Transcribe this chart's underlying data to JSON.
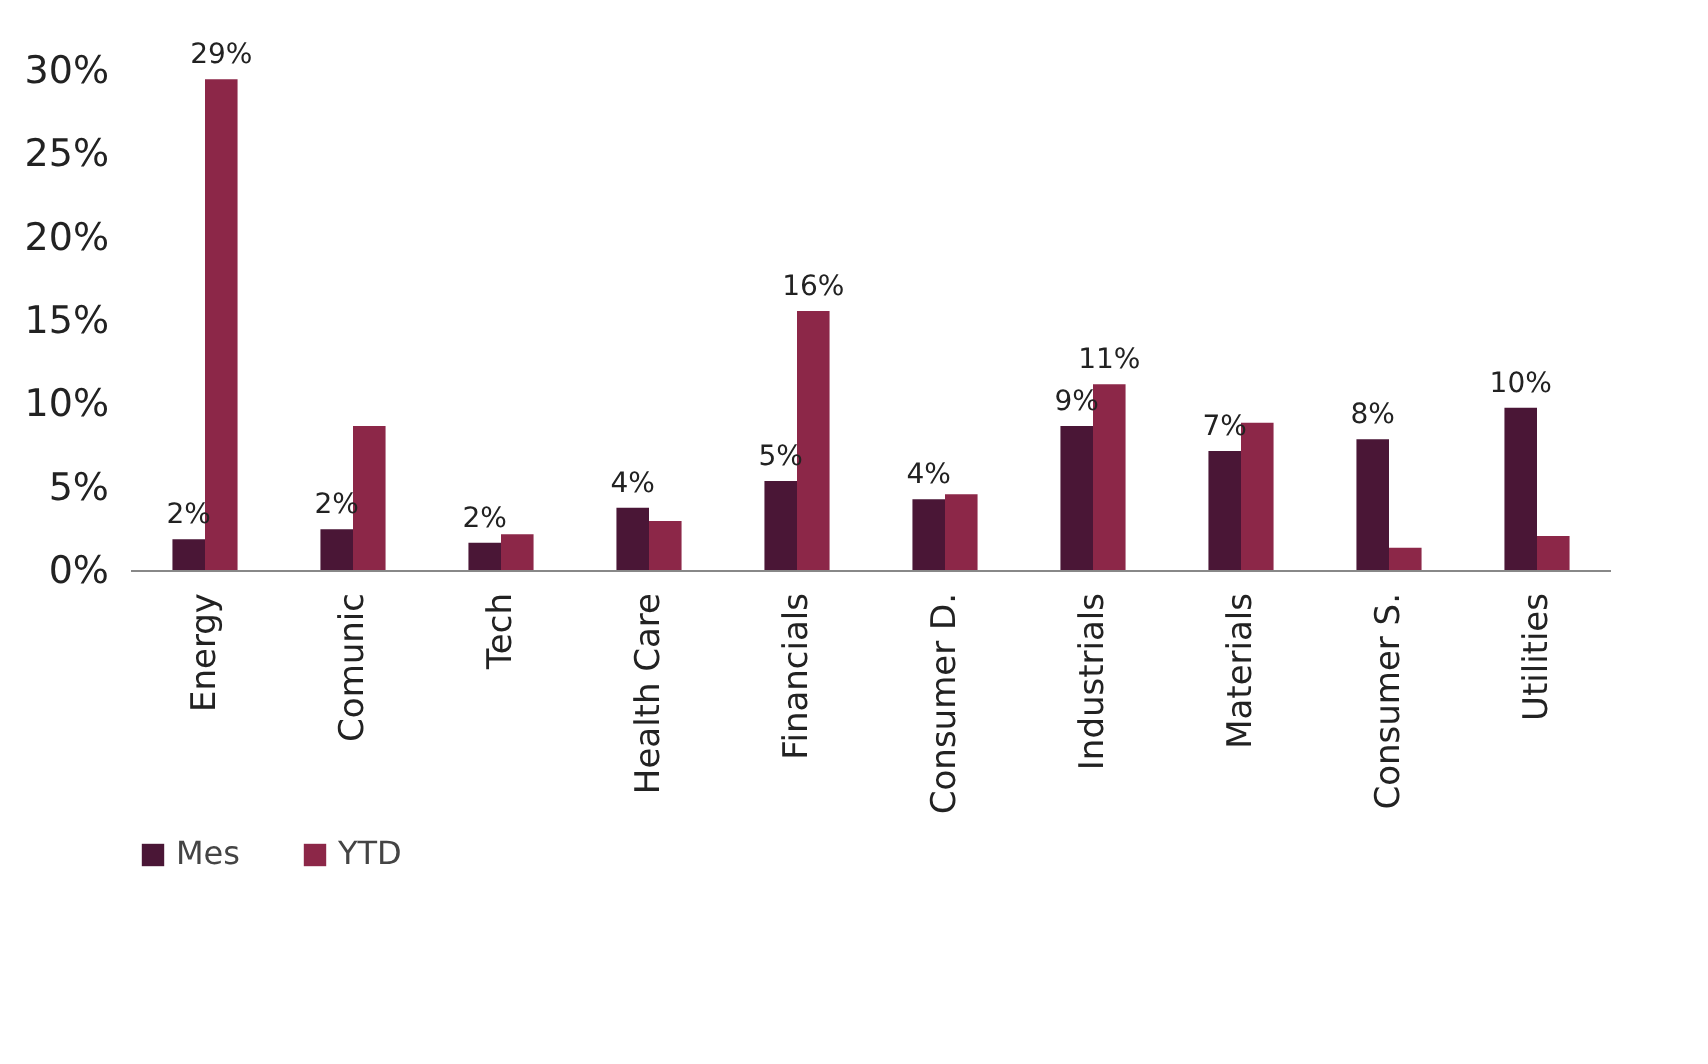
{
  "chart_data": {
    "type": "bar",
    "categories": [
      "Energy",
      "Comunic",
      "Tech",
      "Health Care",
      "Financials",
      "Consumer D.",
      "Industrials",
      "Materials",
      "Consumer S.",
      "Utilities"
    ],
    "series": [
      {
        "name": "Mes",
        "color": "#4a1636",
        "values": [
          1.9,
          2.5,
          1.7,
          3.8,
          5.4,
          4.3,
          8.7,
          7.2,
          7.9,
          9.8
        ],
        "value_labels": [
          "2%",
          "2%",
          "2%",
          "4%",
          "5%",
          "4%",
          "9%",
          "7%",
          "8%",
          "10%"
        ]
      },
      {
        "name": "YTD",
        "color": "#8c2748",
        "values": [
          29.5,
          8.7,
          2.2,
          3.0,
          15.6,
          4.6,
          11.2,
          8.9,
          1.4,
          2.1
        ],
        "value_labels": [
          "29%",
          null,
          null,
          null,
          "16%",
          null,
          "11%",
          null,
          null,
          null
        ]
      }
    ],
    "ylim": [
      0,
      30
    ],
    "yticks": [
      {
        "value": 0,
        "label": "0%"
      },
      {
        "value": 5,
        "label": "5%"
      },
      {
        "value": 10,
        "label": "10%"
      },
      {
        "value": 15,
        "label": "15%"
      },
      {
        "value": 20,
        "label": "20%"
      },
      {
        "value": 25,
        "label": "25%"
      },
      {
        "value": 30,
        "label": "30%"
      }
    ],
    "grid": false,
    "legend": "bottom left"
  }
}
